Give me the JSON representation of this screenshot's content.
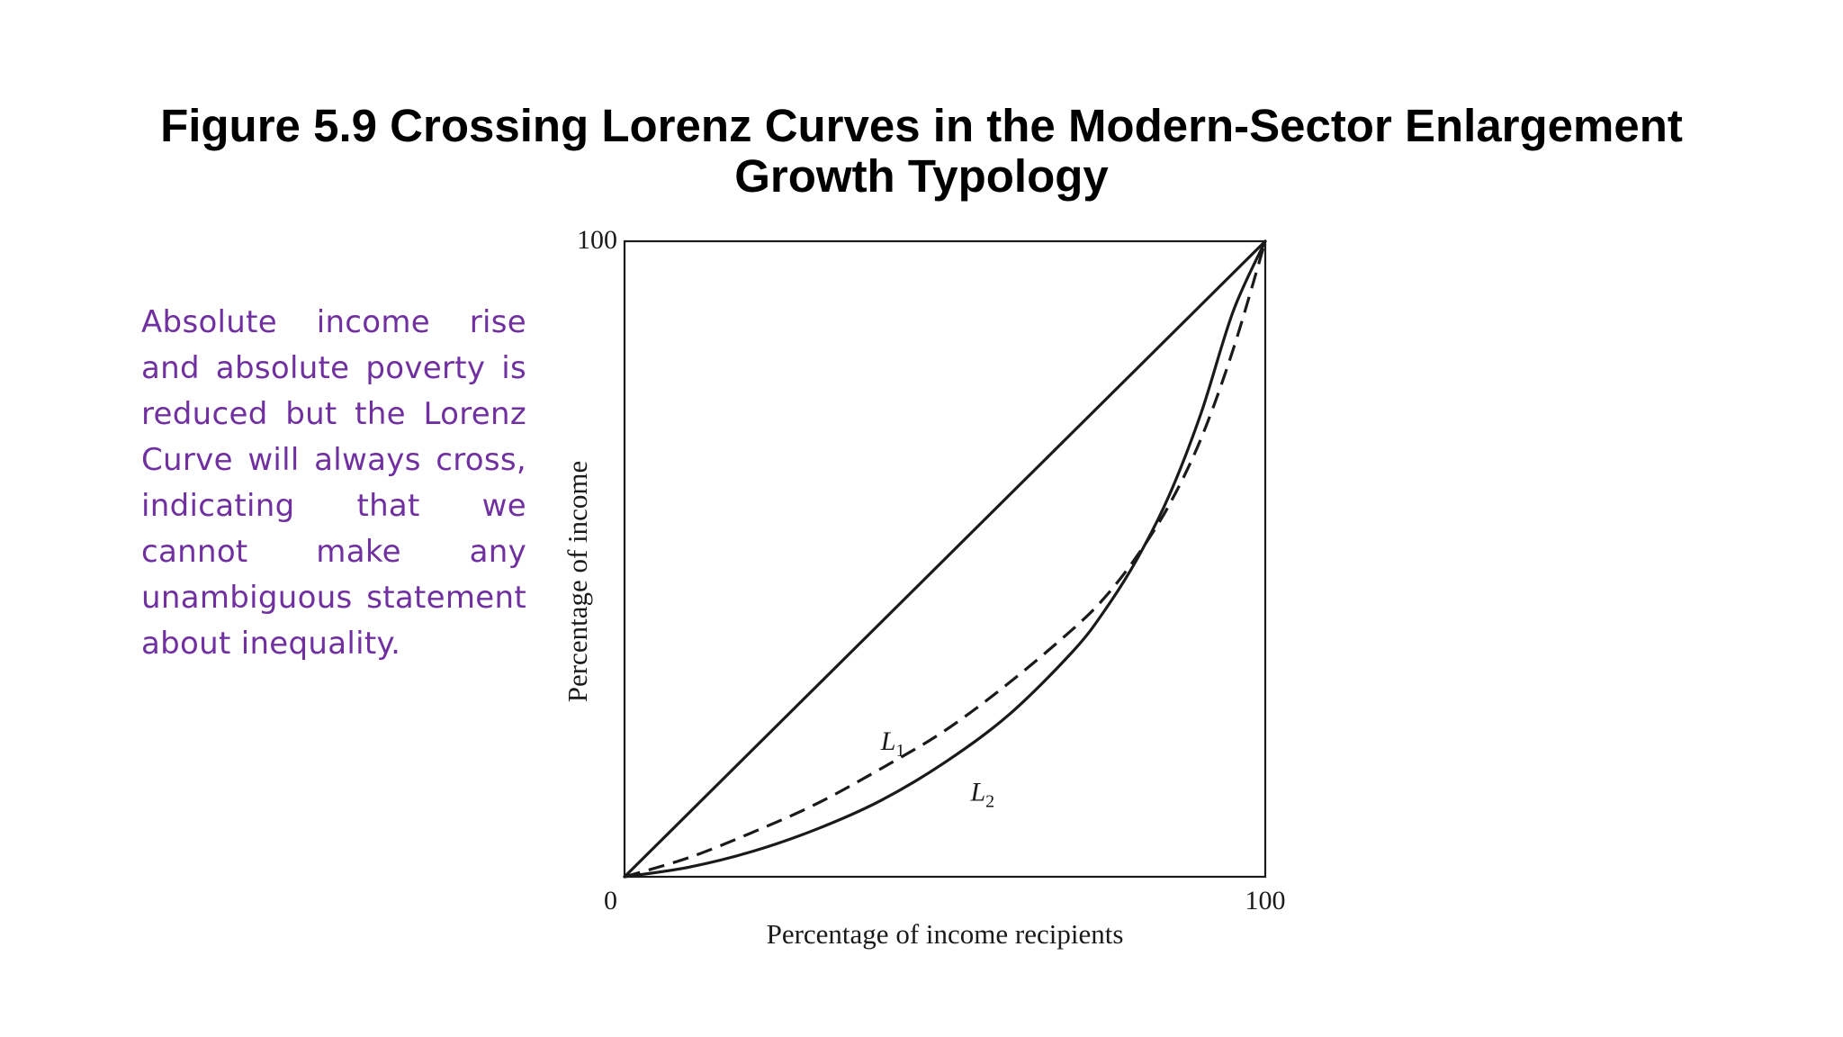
{
  "slide": {
    "title": "Figure 5.9  Crossing Lorenz Curves in the Modern-Sector Enlargement Growth Typology",
    "side_text": "Absolute income rise and absolute poverty is reduced but the Lorenz Curve will always cross, indicating that we cannot make any unambiguous statement about inequality.",
    "side_text_color": "#7030a0"
  },
  "chart_data": {
    "type": "line",
    "title": "",
    "xlabel": "Percentage of income recipients",
    "ylabel": "Percentage of income",
    "xlim": [
      0,
      100
    ],
    "ylim": [
      0,
      100
    ],
    "x_ticks": [
      {
        "value": 0,
        "label": "0"
      },
      {
        "value": 100,
        "label": "100"
      }
    ],
    "y_ticks": [
      {
        "value": 100,
        "label": "100"
      }
    ],
    "grid": false,
    "series": [
      {
        "style": "solid",
        "points": [
          [
            0,
            0
          ],
          [
            100,
            100
          ]
        ]
      },
      {
        "name": "L1",
        "label_main": "L",
        "label_sub": "1",
        "style": "dashed",
        "points": [
          [
            0,
            0
          ],
          [
            10,
            3
          ],
          [
            20,
            7
          ],
          [
            30,
            11.5
          ],
          [
            40,
            17
          ],
          [
            50,
            23
          ],
          [
            60,
            30.5
          ],
          [
            70,
            39
          ],
          [
            75,
            44
          ],
          [
            80,
            50.5
          ],
          [
            85,
            58.5
          ],
          [
            90,
            69
          ],
          [
            95,
            83
          ],
          [
            100,
            100
          ]
        ],
        "label_at": [
          40,
          20
        ]
      },
      {
        "name": "L2",
        "label_main": "L",
        "label_sub": "2",
        "style": "solid",
        "points": [
          [
            0,
            0
          ],
          [
            10,
            1.5
          ],
          [
            20,
            4
          ],
          [
            30,
            7.5
          ],
          [
            40,
            12
          ],
          [
            50,
            18
          ],
          [
            60,
            25.5
          ],
          [
            70,
            35.5
          ],
          [
            75,
            42
          ],
          [
            80,
            50
          ],
          [
            85,
            60
          ],
          [
            90,
            73
          ],
          [
            95,
            89
          ],
          [
            100,
            100
          ]
        ],
        "label_at": [
          54,
          12
        ]
      }
    ]
  }
}
